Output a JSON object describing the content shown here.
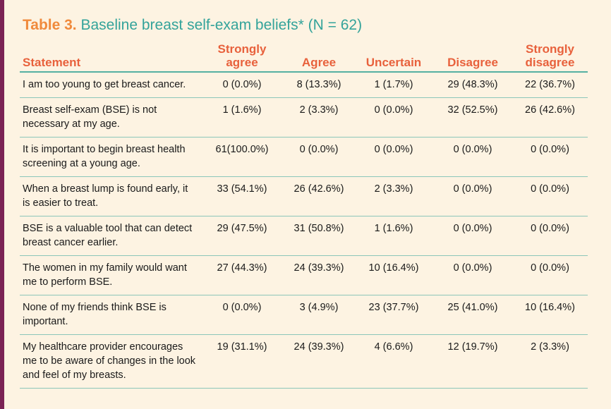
{
  "title": {
    "label": "Table 3.",
    "text": "Baseline breast self-exam beliefs* (N = 62)"
  },
  "headers": [
    "Statement",
    "Strongly agree",
    "Agree",
    "Uncertain",
    "Disagree",
    "Strongly disagree"
  ],
  "rows": [
    {
      "statement": "I am too young to get breast cancer.",
      "values": [
        "0 (0.0%)",
        "8 (13.3%)",
        "1 (1.7%)",
        "29 (48.3%)",
        "22 (36.7%)"
      ]
    },
    {
      "statement": "Breast self-exam (BSE) is not necessary at my age.",
      "values": [
        "1 (1.6%)",
        "2 (3.3%)",
        "0 (0.0%)",
        "32 (52.5%)",
        "26 (42.6%)"
      ]
    },
    {
      "statement": "It is important to begin breast health screening at a young age.",
      "values": [
        "61(100.0%)",
        "0 (0.0%)",
        "0 (0.0%)",
        "0 (0.0%)",
        "0 (0.0%)"
      ]
    },
    {
      "statement": "When a breast lump is found early, it is easier to treat.",
      "values": [
        "33 (54.1%)",
        "26 (42.6%)",
        "2 (3.3%)",
        "0 (0.0%)",
        "0 (0.0%)"
      ]
    },
    {
      "statement": "BSE is a valuable tool that can detect breast cancer earlier.",
      "values": [
        "29 (47.5%)",
        "31 (50.8%)",
        "1 (1.6%)",
        "0 (0.0%)",
        "0 (0.0%)"
      ]
    },
    {
      "statement": "The women in my family would want me to perform BSE.",
      "values": [
        "27 (44.3%)",
        "24 (39.3%)",
        "10 (16.4%)",
        "0 (0.0%)",
        "0 (0.0%)"
      ]
    },
    {
      "statement": "None of my friends think BSE is important.",
      "values": [
        "0 (0.0%)",
        "3 (4.9%)",
        "23 (37.7%)",
        "25 (41.0%)",
        "10 (16.4%)"
      ]
    },
    {
      "statement": "My healthcare provider encourages me to be aware of changes in the look and feel of my breasts.",
      "values": [
        "19 (31.1%)",
        "24 (39.3%)",
        "4 (6.6%)",
        "12 (19.7%)",
        "2 (3.3%)"
      ]
    }
  ],
  "colors": {
    "accent_bar": "#7b2355",
    "title_label": "#f08a3c",
    "title_text": "#33a39a",
    "header_text": "#e8613c",
    "rule": "#55b0a2",
    "background": "#fdf3e2"
  }
}
